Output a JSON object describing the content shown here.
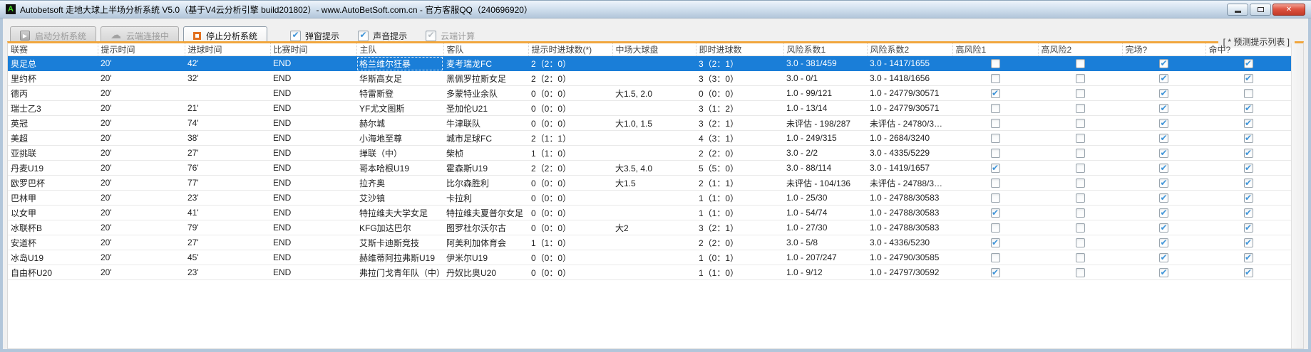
{
  "window": {
    "title": "Autobetsoft 走地大球上半场分析系统 V5.0（基于V4云分析引擎 build201802）- www.AutoBetSoft.com.cn - 官方客服QQ（240696920）"
  },
  "toolbar": {
    "start_button": "启动分析系统",
    "cloud_button": "云端连接中",
    "stop_button": "停止分析系统",
    "popup_checkbox": {
      "label": "弹窗提示",
      "checked": true
    },
    "sound_checkbox": {
      "label": "声音提示",
      "checked": true
    },
    "cloud_checkbox": {
      "label": "云端计算",
      "checked": true,
      "disabled": true
    }
  },
  "panel": {
    "legend": "[ * 预测提示列表 ]"
  },
  "table": {
    "selected_row": 0,
    "columns": [
      {
        "key": "league",
        "label": "联赛"
      },
      {
        "key": "tip_time",
        "label": "提示时间"
      },
      {
        "key": "goal_time",
        "label": "进球时间"
      },
      {
        "key": "match_time",
        "label": "比赛时间"
      },
      {
        "key": "home",
        "label": "主队"
      },
      {
        "key": "away",
        "label": "客队"
      },
      {
        "key": "tip_goals",
        "label": "提示时进球数(*)"
      },
      {
        "key": "half_ou",
        "label": "中场大球盘"
      },
      {
        "key": "live_goals",
        "label": "即时进球数"
      },
      {
        "key": "risk1",
        "label": "风险系数1"
      },
      {
        "key": "risk2",
        "label": "风险系数2"
      },
      {
        "key": "highrisk1",
        "label": "高风险1",
        "type": "checkbox"
      },
      {
        "key": "highrisk2",
        "label": "高风险2",
        "type": "checkbox"
      },
      {
        "key": "finished",
        "label": "完场?",
        "type": "checkbox"
      },
      {
        "key": "hit",
        "label": "命中?",
        "type": "checkbox"
      }
    ],
    "rows": [
      {
        "league": "奥足总",
        "tip_time": "20'",
        "goal_time": "42'",
        "match_time": "END",
        "home": "格兰维尔狂暴",
        "away": "麦考瑞龙FC",
        "tip_goals": "2（2：0）",
        "half_ou": "",
        "live_goals": "3（2：1）",
        "risk1": "3.0 - 381/459",
        "risk2": "3.0 - 1417/1655",
        "highrisk1": false,
        "highrisk2": false,
        "finished": true,
        "hit": true
      },
      {
        "league": "里约杯",
        "tip_time": "20'",
        "goal_time": "32'",
        "match_time": "END",
        "home": "华斯高女足",
        "away": "黑佩罗拉斯女足",
        "tip_goals": "2（2：0）",
        "half_ou": "",
        "live_goals": "3（3：0）",
        "risk1": "3.0 - 0/1",
        "risk2": "3.0 - 1418/1656",
        "highrisk1": false,
        "highrisk2": false,
        "finished": true,
        "hit": true
      },
      {
        "league": "德丙",
        "tip_time": "20'",
        "goal_time": "",
        "match_time": "END",
        "home": "特雷斯登",
        "away": "多蒙特业余队",
        "tip_goals": "0（0：0）",
        "half_ou": "大1.5, 2.0",
        "live_goals": "0（0：0）",
        "risk1": "1.0 - 99/121",
        "risk2": "1.0 - 24779/30571",
        "highrisk1": true,
        "highrisk2": false,
        "finished": true,
        "hit": false
      },
      {
        "league": "瑞士乙3",
        "tip_time": "20'",
        "goal_time": "21'",
        "match_time": "END",
        "home": "YF尤文图斯",
        "away": "圣加伦U21",
        "tip_goals": "0（0：0）",
        "half_ou": "",
        "live_goals": "3（1：2）",
        "risk1": "1.0 - 13/14",
        "risk2": "1.0 - 24779/30571",
        "highrisk1": false,
        "highrisk2": false,
        "finished": true,
        "hit": true
      },
      {
        "league": "英冠",
        "tip_time": "20'",
        "goal_time": "74'",
        "match_time": "END",
        "home": "赫尔城",
        "away": "牛津联队",
        "tip_goals": "0（0：0）",
        "half_ou": "大1.0, 1.5",
        "live_goals": "3（2：1）",
        "risk1": "未评估 - 198/287",
        "risk2": "未评估 - 24780/3…",
        "highrisk1": false,
        "highrisk2": false,
        "finished": true,
        "hit": true
      },
      {
        "league": "美超",
        "tip_time": "20'",
        "goal_time": "38'",
        "match_time": "END",
        "home": "小海地至尊",
        "away": "城市足球FC",
        "tip_goals": "2（1：1）",
        "half_ou": "",
        "live_goals": "4（3：1）",
        "risk1": "1.0 - 249/315",
        "risk2": "1.0 - 2684/3240",
        "highrisk1": false,
        "highrisk2": false,
        "finished": true,
        "hit": true
      },
      {
        "league": "亚挑联",
        "tip_time": "20'",
        "goal_time": "27'",
        "match_time": "END",
        "home": "掸联（中）",
        "away": "柴桢",
        "tip_goals": "1（1：0）",
        "half_ou": "",
        "live_goals": "2（2：0）",
        "risk1": "3.0 - 2/2",
        "risk2": "3.0 - 4335/5229",
        "highrisk1": false,
        "highrisk2": false,
        "finished": true,
        "hit": true
      },
      {
        "league": "丹麦U19",
        "tip_time": "20'",
        "goal_time": "76'",
        "match_time": "END",
        "home": "哥本哈根U19",
        "away": "霍森斯U19",
        "tip_goals": "2（2：0）",
        "half_ou": "大3.5, 4.0",
        "live_goals": "5（5：0）",
        "risk1": "3.0 - 88/114",
        "risk2": "3.0 - 1419/1657",
        "highrisk1": true,
        "highrisk2": false,
        "finished": true,
        "hit": true
      },
      {
        "league": "欧罗巴杯",
        "tip_time": "20'",
        "goal_time": "77'",
        "match_time": "END",
        "home": "拉齐奥",
        "away": "比尔森胜利",
        "tip_goals": "0（0：0）",
        "half_ou": "大1.5",
        "live_goals": "2（1：1）",
        "risk1": "未评估 - 104/136",
        "risk2": "未评估 - 24788/3…",
        "highrisk1": false,
        "highrisk2": false,
        "finished": true,
        "hit": true
      },
      {
        "league": "巴林甲",
        "tip_time": "20'",
        "goal_time": "23'",
        "match_time": "END",
        "home": "艾沙镇",
        "away": "卡拉利",
        "tip_goals": "0（0：0）",
        "half_ou": "",
        "live_goals": "1（1：0）",
        "risk1": "1.0 - 25/30",
        "risk2": "1.0 - 24788/30583",
        "highrisk1": false,
        "highrisk2": false,
        "finished": true,
        "hit": true
      },
      {
        "league": "以女甲",
        "tip_time": "20'",
        "goal_time": "41'",
        "match_time": "END",
        "home": "特拉维夫大学女足",
        "away": "特拉维夫夏普尔女足",
        "tip_goals": "0（0：0）",
        "half_ou": "",
        "live_goals": "1（1：0）",
        "risk1": "1.0 - 54/74",
        "risk2": "1.0 - 24788/30583",
        "highrisk1": true,
        "highrisk2": false,
        "finished": true,
        "hit": true
      },
      {
        "league": "冰联杯B",
        "tip_time": "20'",
        "goal_time": "79'",
        "match_time": "END",
        "home": "KFG加达巴尔",
        "away": "图罗杜尔沃尔古",
        "tip_goals": "0（0：0）",
        "half_ou": "大2",
        "live_goals": "3（2：1）",
        "risk1": "1.0 - 27/30",
        "risk2": "1.0 - 24788/30583",
        "highrisk1": false,
        "highrisk2": false,
        "finished": true,
        "hit": true
      },
      {
        "league": "安道杯",
        "tip_time": "20'",
        "goal_time": "27'",
        "match_time": "END",
        "home": "艾斯卡迪斯竞技",
        "away": "阿美利加体育会",
        "tip_goals": "1（1：0）",
        "half_ou": "",
        "live_goals": "2（2：0）",
        "risk1": "3.0 - 5/8",
        "risk2": "3.0 - 4336/5230",
        "highrisk1": true,
        "highrisk2": false,
        "finished": true,
        "hit": true
      },
      {
        "league": "冰岛U19",
        "tip_time": "20'",
        "goal_time": "45'",
        "match_time": "END",
        "home": "赫维蒂阿拉弗斯U19",
        "away": "伊米尔U19",
        "tip_goals": "0（0：0）",
        "half_ou": "",
        "live_goals": "1（0：1）",
        "risk1": "1.0 - 207/247",
        "risk2": "1.0 - 24790/30585",
        "highrisk1": false,
        "highrisk2": false,
        "finished": true,
        "hit": true
      },
      {
        "league": "自由杯U20",
        "tip_time": "20'",
        "goal_time": "23'",
        "match_time": "END",
        "home": "弗拉门戈青年队（中）",
        "away": "丹奴比奥U20",
        "tip_goals": "0（0：0）",
        "half_ou": "",
        "live_goals": "1（1：0）",
        "risk1": "1.0 - 9/12",
        "risk2": "1.0 - 24797/30592",
        "highrisk1": true,
        "highrisk2": false,
        "finished": true,
        "hit": true
      }
    ]
  }
}
